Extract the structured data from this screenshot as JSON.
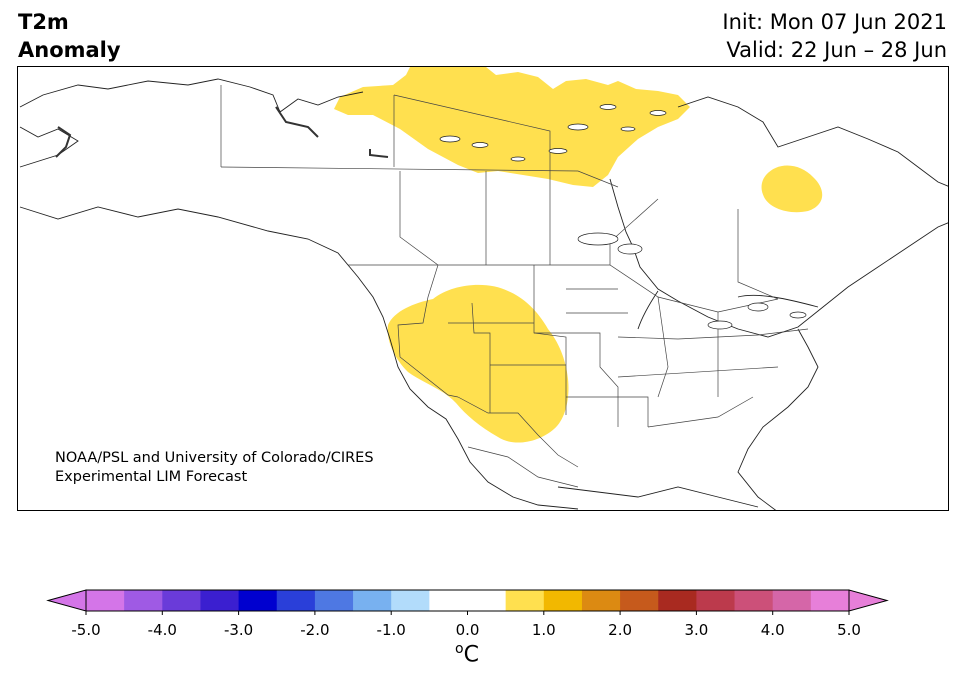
{
  "title": {
    "variable": "T2m",
    "subtitle": "Anomaly",
    "init": "Init: Mon 07 Jun 2021",
    "valid": "Valid: 22 Jun – 28 Jun"
  },
  "credit": {
    "line1": "NOAA/PSL and University of Colorado/CIRES",
    "line2": "Experimental LIM Forecast"
  },
  "map": {
    "region": "North America",
    "anomaly_regions": [
      {
        "area": "Northern Canada (Nunavut / NWT / Hudson Bay)",
        "bin": "0.5 to 1.0",
        "color": "#ffe04f"
      },
      {
        "area": "Northern Quebec",
        "bin": "0.5 to 1.0",
        "color": "#ffe04f"
      },
      {
        "area": "US Southwest / Four Corners to West Texas",
        "bin": "0.5 to 1.0",
        "color": "#ffe04f"
      }
    ]
  },
  "colorbar": {
    "unit_base": "C",
    "unit_sup": "o",
    "tick_labels": [
      "-5.0",
      "-4.0",
      "-3.0",
      "-2.0",
      "-1.0",
      "0.0",
      "1.0",
      "2.0",
      "3.0",
      "4.0",
      "5.0"
    ],
    "tick_values": [
      -5,
      -4,
      -3,
      -2,
      -1,
      0,
      1,
      2,
      3,
      4,
      5
    ],
    "bounds": [
      -5.0,
      -4.5,
      -4.0,
      -3.5,
      -3.0,
      -2.5,
      -2.0,
      -1.5,
      -1.0,
      -0.5,
      0.5,
      1.0,
      1.5,
      2.0,
      2.5,
      3.0,
      3.5,
      4.0,
      4.5,
      5.0
    ],
    "under_color": "#d475e8",
    "over_color": "#e77fd9",
    "colors": [
      "#d475e8",
      "#9f5ae4",
      "#6a3bd9",
      "#3b1fd0",
      "#0000cf",
      "#2a3fd9",
      "#4e78e3",
      "#78b1f0",
      "#b2dcfb",
      "#ffffff",
      "#ffe04f",
      "#f2b800",
      "#dc8a12",
      "#c65a1c",
      "#a92a20",
      "#bc3a4c",
      "#cc5079",
      "#d566a8",
      "#e77fd9"
    ]
  }
}
